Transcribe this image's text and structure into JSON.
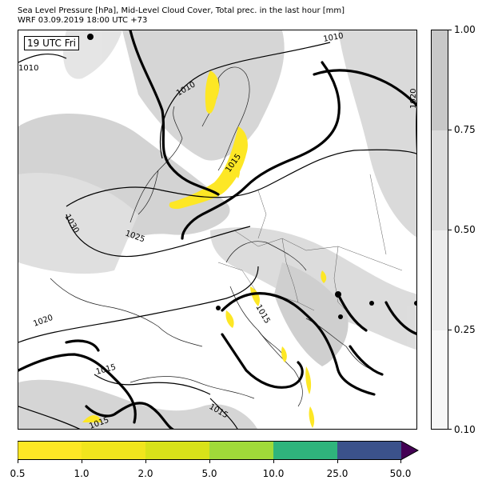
{
  "header": {
    "line1": "Sea Level Pressure [hPa], Mid-Level Cloud Cover, Total prec. in the last hour [mm]",
    "line2": "WRF 03.09.2019 18:00 UTC +73"
  },
  "map": {
    "time_label": "19 UTC Fri",
    "isobar_labels": [
      "1010",
      "1010",
      "1010",
      "1015",
      "1025",
      "1030",
      "1020",
      "1015",
      "1015",
      "1015",
      "1015",
      "1020"
    ]
  },
  "cloud_colorbar": {
    "ticks": [
      "1.00",
      "0.75",
      "0.50",
      "0.25",
      "0.10"
    ],
    "colors": [
      "#c8c8c8",
      "#dcdcdc",
      "#ececec",
      "#f7f7f7"
    ]
  },
  "precip_colorbar": {
    "ticks": [
      "0.5",
      "1.0",
      "2.0",
      "5.0",
      "10.0",
      "25.0",
      "50.0"
    ],
    "colors": [
      "#fde725",
      "#f1e51d",
      "#d8e219",
      "#a0da39",
      "#2fb47c",
      "#3b528b"
    ],
    "extend_color": "#440154"
  }
}
